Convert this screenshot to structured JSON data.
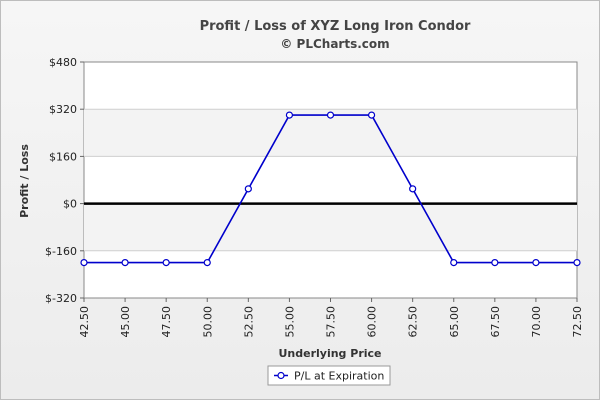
{
  "chart_data": {
    "type": "line",
    "title": "Profit / Loss of XYZ Long Iron Condor",
    "subtitle": "© PLCharts.com",
    "xlabel": "Underlying Price",
    "ylabel": "Profit / Loss",
    "x": [
      42.5,
      45.0,
      47.5,
      50.0,
      52.5,
      55.0,
      57.5,
      60.0,
      62.5,
      65.0,
      67.5,
      70.0,
      72.5
    ],
    "x_tick_labels": [
      "42.50",
      "45.00",
      "47.50",
      "50.00",
      "52.50",
      "55.00",
      "57.50",
      "60.00",
      "62.50",
      "65.00",
      "67.50",
      "70.00",
      "72.50"
    ],
    "y_ticks": [
      480,
      320,
      160,
      0,
      -160,
      -320
    ],
    "y_tick_labels": [
      "$480",
      "$320",
      "$160",
      "$0",
      "$-160",
      "$-320"
    ],
    "ylim": [
      -320,
      480
    ],
    "xlim": [
      42.5,
      72.5
    ],
    "grid": true,
    "legend_position": "bottom",
    "series": [
      {
        "name": "P/L at Expiration",
        "color": "#0000cc",
        "values": [
          -200,
          -200,
          -200,
          -200,
          50,
          300,
          300,
          300,
          50,
          -200,
          -200,
          -200,
          -200
        ]
      }
    ]
  }
}
